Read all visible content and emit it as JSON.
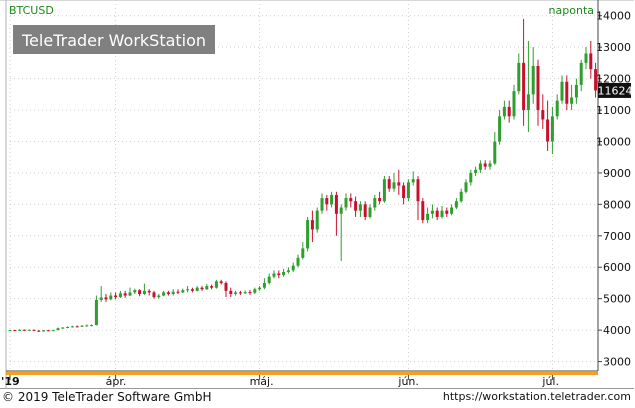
{
  "header": {
    "symbol": "BTCUSD",
    "interval": "naponta",
    "watermark": "TeleTrader WorkStation"
  },
  "footer": {
    "copyright": "© 2019 TeleTrader Software GmbH",
    "url": "https://workstation.teletrader.com"
  },
  "chart_data": {
    "type": "candlestick",
    "title": "BTCUSD",
    "interval": "naponta",
    "last_price": 11624,
    "y_range": [
      2700,
      14500
    ],
    "y_ticks": [
      3000,
      4000,
      5000,
      6000,
      7000,
      8000,
      9000,
      10000,
      11000,
      12000,
      13000,
      14000
    ],
    "x_ticks": [
      {
        "label": "'19",
        "day": 0
      },
      {
        "label": "ápr.",
        "day": 22
      },
      {
        "label": "máj.",
        "day": 52
      },
      {
        "label": "jún.",
        "day": 83
      },
      {
        "label": "júl.",
        "day": 113
      }
    ],
    "up_color": "#2e9e2e",
    "down_color": "#c8102e",
    "candles": [
      [
        3990,
        4000,
        3975,
        4010
      ],
      [
        4000,
        3995,
        3980,
        4015
      ],
      [
        3995,
        4010,
        3985,
        4030
      ],
      [
        4010,
        4000,
        3985,
        4025
      ],
      [
        4000,
        4010,
        3990,
        4025
      ],
      [
        4010,
        3985,
        3970,
        4020
      ],
      [
        3985,
        3960,
        3940,
        4000
      ],
      [
        3960,
        3995,
        3950,
        4005
      ],
      [
        3995,
        3990,
        3975,
        4010
      ],
      [
        3990,
        4000,
        3980,
        4015
      ],
      [
        4000,
        4060,
        3995,
        4080
      ],
      [
        4060,
        4080,
        4040,
        4100
      ],
      [
        4080,
        4100,
        4060,
        4120
      ],
      [
        4100,
        4120,
        4080,
        4140
      ],
      [
        4120,
        4110,
        4090,
        4150
      ],
      [
        4110,
        4140,
        4100,
        4160
      ],
      [
        4140,
        4150,
        4110,
        4180
      ],
      [
        4150,
        4160,
        4120,
        4180
      ],
      [
        4160,
        4960,
        4150,
        5100
      ],
      [
        4960,
        5040,
        4900,
        5400
      ],
      [
        5040,
        4980,
        4900,
        5150
      ],
      [
        4980,
        5100,
        4950,
        5200
      ],
      [
        5100,
        5050,
        4980,
        5200
      ],
      [
        5050,
        5170,
        5020,
        5250
      ],
      [
        5170,
        5100,
        5030,
        5250
      ],
      [
        5100,
        5200,
        5080,
        5350
      ],
      [
        5200,
        5270,
        5150,
        5320
      ],
      [
        5270,
        5150,
        5080,
        5300
      ],
      [
        5150,
        5250,
        5120,
        5480
      ],
      [
        5250,
        5200,
        5100,
        5300
      ],
      [
        5200,
        5050,
        5000,
        5250
      ],
      [
        5050,
        5100,
        5000,
        5150
      ],
      [
        5100,
        5200,
        5080,
        5250
      ],
      [
        5200,
        5150,
        5100,
        5250
      ],
      [
        5150,
        5220,
        5100,
        5300
      ],
      [
        5220,
        5200,
        5150,
        5300
      ],
      [
        5200,
        5270,
        5180,
        5320
      ],
      [
        5270,
        5300,
        5200,
        5400
      ],
      [
        5300,
        5250,
        5200,
        5350
      ],
      [
        5250,
        5350,
        5230,
        5400
      ],
      [
        5350,
        5300,
        5250,
        5400
      ],
      [
        5300,
        5400,
        5280,
        5470
      ],
      [
        5400,
        5350,
        5300,
        5450
      ],
      [
        5350,
        5550,
        5320,
        5600
      ],
      [
        5550,
        5500,
        5450,
        5600
      ],
      [
        5500,
        5250,
        5050,
        5550
      ],
      [
        5250,
        5150,
        5050,
        5350
      ],
      [
        5150,
        5200,
        5100,
        5250
      ],
      [
        5200,
        5180,
        5120,
        5250
      ],
      [
        5180,
        5210,
        5150,
        5260
      ],
      [
        5210,
        5190,
        5120,
        5280
      ],
      [
        5190,
        5300,
        5150,
        5350
      ],
      [
        5300,
        5350,
        5250,
        5400
      ],
      [
        5350,
        5500,
        5300,
        5650
      ],
      [
        5500,
        5700,
        5450,
        5800
      ],
      [
        5700,
        5800,
        5650,
        5900
      ],
      [
        5800,
        5750,
        5650,
        5900
      ],
      [
        5750,
        5850,
        5700,
        5950
      ],
      [
        5850,
        5900,
        5800,
        6000
      ],
      [
        5900,
        6050,
        5850,
        6150
      ],
      [
        6050,
        6300,
        6000,
        6400
      ],
      [
        6300,
        6600,
        6250,
        6800
      ],
      [
        6600,
        7500,
        6500,
        7600
      ],
      [
        7500,
        7200,
        6800,
        7800
      ],
      [
        7200,
        7800,
        7100,
        7900
      ],
      [
        7800,
        8200,
        7700,
        8350
      ],
      [
        8200,
        8000,
        7800,
        8300
      ],
      [
        8000,
        8300,
        7900,
        8400
      ],
      [
        8300,
        7700,
        7000,
        8400
      ],
      [
        7700,
        7900,
        6200,
        8000
      ],
      [
        7900,
        8200,
        7800,
        8350
      ],
      [
        8200,
        8100,
        7900,
        8350
      ],
      [
        8100,
        7800,
        7600,
        8250
      ],
      [
        7800,
        8000,
        7600,
        8100
      ],
      [
        8000,
        7600,
        7500,
        8100
      ],
      [
        7600,
        7900,
        7550,
        8000
      ],
      [
        7900,
        8200,
        7800,
        8300
      ],
      [
        8200,
        8100,
        8000,
        8400
      ],
      [
        8100,
        8800,
        8050,
        8900
      ],
      [
        8800,
        8500,
        8400,
        8900
      ],
      [
        8500,
        8700,
        8400,
        9000
      ],
      [
        8700,
        8600,
        8300,
        9100
      ],
      [
        8600,
        8200,
        8000,
        8700
      ],
      [
        8200,
        8700,
        8100,
        8800
      ],
      [
        8700,
        8800,
        8600,
        9050
      ],
      [
        8800,
        8100,
        7500,
        8900
      ],
      [
        8100,
        7500,
        7400,
        8200
      ],
      [
        7500,
        7700,
        7400,
        7900
      ],
      [
        7700,
        7800,
        7550,
        8000
      ],
      [
        7800,
        7600,
        7500,
        7900
      ],
      [
        7600,
        7800,
        7550,
        7950
      ],
      [
        7800,
        7700,
        7600,
        7900
      ],
      [
        7700,
        7900,
        7650,
        8000
      ],
      [
        7900,
        8100,
        7850,
        8200
      ],
      [
        8100,
        8400,
        8050,
        8500
      ],
      [
        8400,
        8700,
        8350,
        8800
      ],
      [
        8700,
        9000,
        8600,
        9100
      ],
      [
        9000,
        9100,
        8900,
        9200
      ],
      [
        9100,
        9300,
        9000,
        9400
      ],
      [
        9300,
        9200,
        9100,
        9400
      ],
      [
        9200,
        9300,
        9100,
        9400
      ],
      [
        9300,
        10000,
        9250,
        10300
      ],
      [
        10000,
        10800,
        9900,
        11000
      ],
      [
        10800,
        11100,
        10700,
        11300
      ],
      [
        11100,
        10800,
        10600,
        11300
      ],
      [
        10800,
        11600,
        10700,
        11800
      ],
      [
        11600,
        12500,
        11500,
        12800
      ],
      [
        12500,
        11000,
        10500,
        13900
      ],
      [
        11000,
        11500,
        10300,
        13200
      ],
      [
        11500,
        12400,
        11200,
        13000
      ],
      [
        12400,
        11000,
        10500,
        12600
      ],
      [
        11000,
        10700,
        10400,
        11500
      ],
      [
        10700,
        10000,
        9700,
        11300
      ],
      [
        10000,
        10800,
        9600,
        11100
      ],
      [
        10800,
        11300,
        10700,
        11500
      ],
      [
        11300,
        11900,
        11200,
        12100
      ],
      [
        11900,
        11200,
        11000,
        12100
      ],
      [
        11200,
        11400,
        11000,
        11800
      ],
      [
        11400,
        11800,
        11200,
        12000
      ],
      [
        11800,
        12500,
        11600,
        12600
      ],
      [
        12500,
        12800,
        12300,
        13000
      ],
      [
        12800,
        12300,
        12000,
        13200
      ],
      [
        12300,
        11624,
        11400,
        12500
      ]
    ]
  }
}
